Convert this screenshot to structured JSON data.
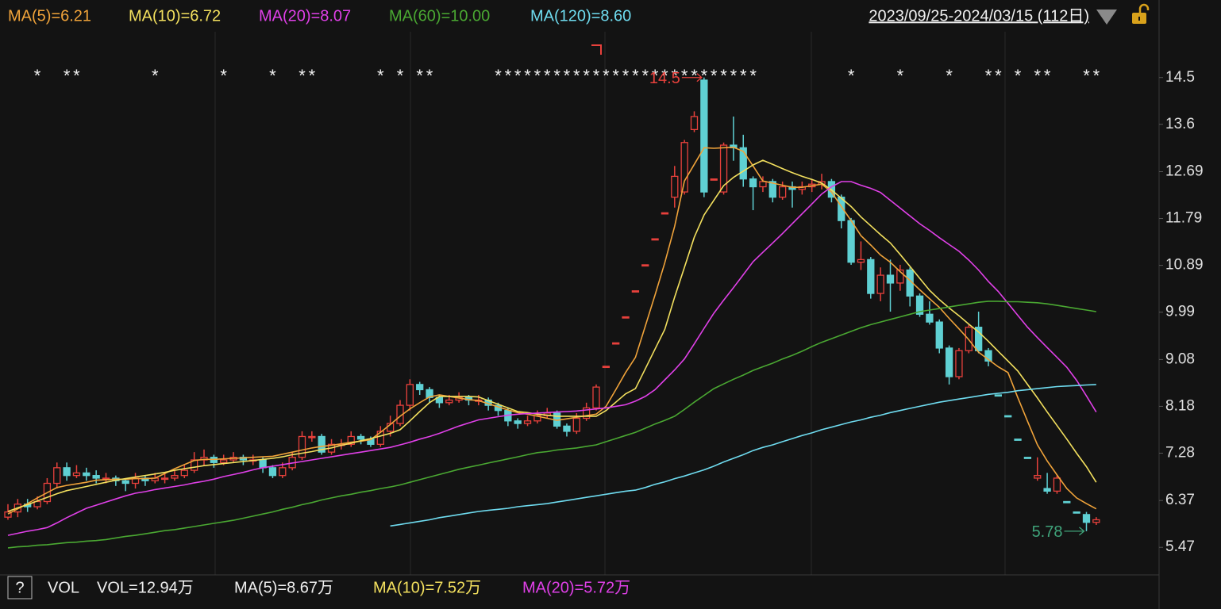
{
  "chart_data": {
    "type": "candlestick",
    "date_range": "2023/09/25-2024/03/15 (112日)",
    "ylim": [
      4.94,
      15.38
    ],
    "yticks": [
      5.47,
      6.37,
      7.28,
      8.18,
      9.08,
      9.99,
      10.89,
      11.79,
      12.69,
      13.6,
      14.5
    ],
    "up_color": "#e8413c",
    "down_color": "#5fd0d3",
    "high_mark": 14.5,
    "low_mark": 5.78,
    "categories": [
      null,
      null,
      null,
      null,
      null,
      null,
      null,
      null,
      null,
      null,
      null,
      null,
      null,
      null,
      null,
      null,
      null,
      null,
      null,
      null,
      null,
      null,
      null,
      null,
      null,
      null,
      null,
      null,
      null,
      null,
      null,
      null,
      null,
      null,
      null,
      null,
      null,
      null,
      null,
      null,
      null,
      null,
      null,
      null,
      null,
      null,
      null,
      null,
      null,
      null,
      null,
      null,
      null,
      null,
      null,
      null,
      null,
      null,
      null,
      null,
      null,
      null,
      null,
      null,
      null,
      null,
      null,
      null,
      null,
      null,
      null,
      null,
      null,
      null,
      null,
      null,
      null,
      null,
      null,
      null,
      null,
      null,
      null,
      null,
      null,
      null,
      null,
      null,
      null,
      null,
      null,
      null,
      null,
      null,
      null,
      null,
      null,
      null,
      null,
      null,
      null,
      null,
      null,
      null,
      null,
      null,
      null,
      null,
      null,
      null,
      null,
      null
    ],
    "event_marks": [
      null,
      null,
      null,
      "*",
      null,
      null,
      "*",
      "*",
      null,
      null,
      null,
      null,
      null,
      null,
      null,
      "*",
      null,
      null,
      null,
      null,
      null,
      null,
      "*",
      null,
      null,
      null,
      null,
      "*",
      null,
      null,
      "*",
      "*",
      null,
      null,
      null,
      null,
      null,
      null,
      "*",
      null,
      "*",
      null,
      "*",
      "*",
      null,
      null,
      null,
      null,
      null,
      null,
      "*",
      "*",
      "*",
      "*",
      "*",
      "*",
      "*",
      "*",
      "*",
      "*",
      "*",
      "*",
      "*",
      "*",
      "*",
      "*",
      "*",
      "*",
      "*",
      "*",
      "*",
      "*",
      "*",
      "*",
      "*",
      "*",
      "*",
      null,
      null,
      null,
      null,
      null,
      null,
      null,
      null,
      null,
      "*",
      null,
      null,
      null,
      null,
      "*",
      null,
      null,
      null,
      null,
      "*",
      null,
      null,
      null,
      "*",
      "*",
      null,
      "*",
      null,
      "*",
      "*",
      null,
      null,
      null,
      "*",
      "*"
    ],
    "open": [
      6.05,
      6.15,
      6.3,
      6.25,
      6.35,
      6.7,
      7.0,
      6.85,
      6.9,
      6.85,
      6.8,
      6.8,
      6.75,
      6.7,
      6.8,
      6.75,
      6.8,
      6.8,
      6.85,
      6.95,
      7.15,
      7.2,
      7.1,
      7.15,
      7.2,
      7.15,
      7.15,
      7.0,
      6.85,
      7.0,
      7.2,
      7.6,
      7.6,
      7.3,
      7.45,
      7.45,
      7.6,
      7.55,
      7.45,
      7.7,
      7.85,
      8.2,
      8.6,
      8.5,
      8.35,
      8.25,
      8.3,
      8.35,
      8.3,
      8.3,
      8.2,
      8.1,
      7.9,
      7.85,
      7.9,
      8.0,
      8.05,
      7.8,
      7.7,
      7.95,
      8.15,
      8.95,
      9.4,
      9.9,
      10.4,
      10.9,
      11.4,
      11.9,
      12.2,
      12.3,
      13.5,
      14.45,
      12.55,
      12.3,
      13.2,
      13.15,
      12.55,
      12.4,
      12.5,
      12.2,
      12.4,
      12.35,
      12.4,
      12.45,
      12.5,
      12.2,
      11.75,
      10.95,
      11.0,
      10.35,
      10.7,
      10.55,
      10.8,
      10.3,
      9.95,
      9.8,
      9.3,
      8.75,
      9.25,
      9.7,
      9.25,
      8.4,
      8.0,
      7.55,
      7.2,
      6.8,
      6.6,
      6.55,
      6.35,
      6.15,
      6.1,
      5.95
    ],
    "high": [
      6.3,
      6.4,
      6.4,
      6.45,
      6.8,
      7.1,
      7.1,
      7.05,
      7.0,
      6.95,
      6.9,
      6.85,
      6.8,
      6.9,
      6.85,
      6.9,
      6.9,
      6.95,
      7.05,
      7.3,
      7.35,
      7.25,
      7.25,
      7.3,
      7.25,
      7.25,
      7.2,
      7.05,
      7.1,
      7.3,
      7.7,
      7.7,
      7.65,
      7.55,
      7.55,
      7.7,
      7.65,
      7.6,
      7.8,
      8.0,
      8.3,
      8.7,
      8.65,
      8.55,
      8.4,
      8.4,
      8.45,
      8.4,
      8.4,
      8.35,
      8.25,
      8.15,
      7.95,
      8.0,
      8.1,
      8.15,
      8.1,
      7.85,
      8.05,
      8.25,
      8.6,
      8.95,
      9.4,
      9.9,
      10.4,
      10.9,
      11.4,
      11.9,
      12.8,
      13.3,
      13.85,
      14.5,
      12.55,
      13.25,
      13.75,
      13.4,
      12.6,
      12.6,
      12.55,
      12.5,
      12.5,
      12.5,
      12.55,
      12.65,
      12.55,
      12.25,
      11.8,
      11.35,
      11.05,
      10.85,
      11.0,
      10.9,
      10.85,
      10.35,
      10.2,
      9.85,
      9.35,
      9.3,
      9.75,
      10.0,
      9.3,
      8.4,
      8.0,
      7.55,
      7.2,
      7.2,
      6.9,
      6.85,
      6.35,
      6.15,
      6.15,
      6.05
    ],
    "low": [
      6.0,
      6.05,
      6.15,
      6.2,
      6.3,
      6.6,
      6.75,
      6.8,
      6.75,
      6.7,
      6.7,
      6.65,
      6.55,
      6.6,
      6.65,
      6.7,
      6.7,
      6.75,
      6.8,
      6.9,
      7.05,
      7.0,
      7.05,
      7.1,
      7.05,
      7.05,
      6.9,
      6.8,
      6.8,
      6.95,
      7.15,
      7.5,
      7.25,
      7.25,
      7.35,
      7.4,
      7.45,
      7.4,
      7.4,
      7.6,
      7.8,
      8.1,
      8.4,
      8.25,
      8.15,
      8.2,
      8.25,
      8.2,
      8.2,
      8.1,
      8.0,
      7.8,
      7.75,
      7.8,
      7.85,
      7.95,
      7.75,
      7.6,
      7.65,
      7.9,
      8.1,
      8.95,
      9.4,
      9.9,
      10.4,
      10.9,
      11.4,
      11.9,
      12.0,
      12.25,
      13.45,
      12.2,
      12.55,
      12.25,
      12.9,
      12.4,
      11.95,
      12.3,
      12.1,
      12.15,
      12.0,
      12.25,
      12.3,
      12.35,
      12.1,
      11.6,
      10.9,
      10.8,
      10.25,
      10.2,
      10.0,
      10.4,
      10.1,
      9.9,
      9.75,
      9.2,
      8.6,
      8.7,
      9.2,
      9.2,
      8.95,
      8.4,
      8.0,
      7.55,
      7.2,
      6.75,
      6.5,
      6.5,
      6.35,
      6.15,
      5.78,
      5.9
    ],
    "close": [
      6.15,
      6.3,
      6.25,
      6.35,
      6.7,
      7.0,
      6.85,
      6.9,
      6.85,
      6.8,
      6.8,
      6.75,
      6.7,
      6.8,
      6.75,
      6.8,
      6.8,
      6.85,
      6.95,
      7.15,
      7.2,
      7.1,
      7.15,
      7.2,
      7.15,
      7.15,
      7.0,
      6.85,
      7.0,
      7.2,
      7.6,
      7.6,
      7.3,
      7.45,
      7.45,
      7.6,
      7.55,
      7.45,
      7.7,
      7.85,
      8.2,
      8.6,
      8.5,
      8.35,
      8.25,
      8.3,
      8.35,
      8.3,
      8.3,
      8.2,
      8.1,
      7.9,
      7.85,
      7.9,
      8.0,
      8.05,
      7.8,
      7.7,
      7.95,
      8.15,
      8.55,
      8.95,
      9.4,
      9.9,
      10.4,
      10.9,
      11.4,
      11.9,
      12.6,
      13.25,
      13.75,
      12.3,
      12.55,
      13.2,
      13.15,
      12.55,
      12.4,
      12.5,
      12.2,
      12.4,
      12.35,
      12.4,
      12.45,
      12.5,
      12.2,
      11.75,
      10.95,
      11.0,
      10.35,
      10.7,
      10.55,
      10.8,
      10.3,
      9.95,
      9.8,
      9.3,
      8.75,
      9.25,
      9.7,
      9.25,
      9.05,
      8.4,
      8.0,
      7.55,
      7.2,
      6.85,
      6.55,
      6.8,
      6.35,
      6.15,
      5.95,
      6.0
    ],
    "series": [
      {
        "name": "MA(5)=6.21",
        "color": "#f0a33a",
        "values": [
          6.11,
          6.21,
          6.31,
          6.42,
          6.52,
          6.62,
          6.66,
          6.69,
          6.72,
          6.76,
          6.77,
          6.78,
          6.78,
          6.79,
          6.79,
          6.8,
          6.89,
          6.98,
          7.06,
          7.14,
          7.16,
          7.16,
          7.17,
          7.18,
          7.19,
          7.2,
          7.21,
          7.22,
          7.26,
          7.3,
          7.34,
          7.38,
          7.41,
          7.43,
          7.46,
          7.49,
          7.51,
          7.54,
          7.68,
          7.83,
          7.99,
          8.13,
          8.25,
          8.36,
          8.4,
          8.37,
          8.34,
          8.31,
          8.29,
          8.23,
          8.17,
          8.11,
          8.06,
          8.03,
          7.99,
          7.95,
          7.91,
          7.94,
          7.97,
          8.0,
          8.03,
          8.18,
          8.5,
          8.83,
          9.12,
          9.72,
          10.32,
          10.94,
          11.64,
          12.51,
          12.83,
          13.15,
          13.14,
          13.15,
          13.16,
          13.08,
          12.8,
          12.51,
          12.47,
          12.43,
          12.39,
          12.39,
          12.42,
          12.45,
          12.3,
          12.02,
          11.75,
          11.46,
          11.28,
          11.09,
          10.95,
          10.77,
          10.6,
          10.42,
          10.25,
          10.08,
          9.87,
          9.67,
          9.46,
          9.22,
          9.08,
          8.94,
          8.83,
          8.35,
          7.89,
          7.44,
          7.13,
          6.86,
          6.6,
          6.42,
          6.31,
          6.21
        ]
      },
      {
        "name": "MA(10)=6.72",
        "color": "#f3e05e",
        "values": [
          6.16,
          6.23,
          6.29,
          6.36,
          6.43,
          6.5,
          6.56,
          6.6,
          6.64,
          6.68,
          6.72,
          6.76,
          6.79,
          6.82,
          6.85,
          6.88,
          6.91,
          6.95,
          6.98,
          7.01,
          7.04,
          7.06,
          7.08,
          7.1,
          7.12,
          7.14,
          7.16,
          7.18,
          7.21,
          7.25,
          7.28,
          7.31,
          7.35,
          7.38,
          7.43,
          7.47,
          7.52,
          7.56,
          7.61,
          7.66,
          7.73,
          7.9,
          8.08,
          8.25,
          8.37,
          8.37,
          8.37,
          8.37,
          8.36,
          8.29,
          8.22,
          8.15,
          8.08,
          8.06,
          8.03,
          8.01,
          7.99,
          7.99,
          7.99,
          7.99,
          7.99,
          8.1,
          8.26,
          8.42,
          8.52,
          8.9,
          9.28,
          9.66,
          10.28,
          10.85,
          11.43,
          11.86,
          12.14,
          12.42,
          12.58,
          12.7,
          12.82,
          12.91,
          12.83,
          12.75,
          12.67,
          12.6,
          12.54,
          12.47,
          12.34,
          12.18,
          12.02,
          11.82,
          11.65,
          11.48,
          11.32,
          11.1,
          10.87,
          10.64,
          10.41,
          10.23,
          10.07,
          9.92,
          9.76,
          9.61,
          9.43,
          9.24,
          9.05,
          8.86,
          8.6,
          8.34,
          8.07,
          7.81,
          7.55,
          7.28,
          7.02,
          6.72
        ]
      },
      {
        "name": "MA(20)=8.07",
        "color": "#e040e8",
        "values": [
          5.7,
          5.74,
          5.78,
          5.81,
          5.85,
          5.94,
          6.04,
          6.13,
          6.22,
          6.28,
          6.34,
          6.4,
          6.46,
          6.51,
          6.54,
          6.58,
          6.61,
          6.64,
          6.67,
          6.71,
          6.74,
          6.78,
          6.83,
          6.87,
          6.91,
          6.96,
          7.0,
          7.03,
          7.06,
          7.09,
          7.12,
          7.15,
          7.18,
          7.21,
          7.24,
          7.27,
          7.3,
          7.33,
          7.36,
          7.39,
          7.44,
          7.49,
          7.55,
          7.6,
          7.66,
          7.73,
          7.8,
          7.86,
          7.92,
          7.95,
          7.98,
          8.01,
          8.03,
          8.04,
          8.05,
          8.06,
          8.07,
          8.08,
          8.09,
          8.11,
          8.13,
          8.15,
          8.18,
          8.21,
          8.28,
          8.37,
          8.5,
          8.69,
          8.88,
          9.09,
          9.38,
          9.68,
          9.97,
          10.22,
          10.46,
          10.71,
          10.96,
          11.14,
          11.32,
          11.5,
          11.69,
          11.88,
          12.07,
          12.26,
          12.4,
          12.5,
          12.5,
          12.43,
          12.37,
          12.29,
          12.14,
          11.99,
          11.84,
          11.69,
          11.56,
          11.42,
          11.29,
          11.16,
          10.99,
          10.8,
          10.58,
          10.39,
          10.16,
          9.93,
          9.7,
          9.5,
          9.31,
          9.12,
          8.93,
          8.68,
          8.38,
          8.07
        ]
      },
      {
        "name": "MA(60)=10.00",
        "color": "#4aa832",
        "values": [
          5.46,
          5.48,
          5.49,
          5.51,
          5.52,
          5.54,
          5.56,
          5.57,
          5.59,
          5.6,
          5.62,
          5.65,
          5.68,
          5.7,
          5.73,
          5.76,
          5.79,
          5.81,
          5.84,
          5.87,
          5.9,
          5.93,
          5.96,
          5.99,
          6.03,
          6.07,
          6.11,
          6.15,
          6.2,
          6.24,
          6.29,
          6.33,
          6.38,
          6.42,
          6.46,
          6.49,
          6.53,
          6.56,
          6.6,
          6.63,
          6.67,
          6.72,
          6.77,
          6.82,
          6.87,
          6.92,
          6.97,
          7.01,
          7.05,
          7.09,
          7.13,
          7.17,
          7.21,
          7.25,
          7.29,
          7.31,
          7.34,
          7.36,
          7.38,
          7.41,
          7.44,
          7.5,
          7.56,
          7.62,
          7.68,
          7.76,
          7.84,
          7.91,
          7.99,
          8.12,
          8.26,
          8.39,
          8.52,
          8.61,
          8.7,
          8.78,
          8.87,
          8.94,
          9.01,
          9.09,
          9.16,
          9.24,
          9.33,
          9.41,
          9.48,
          9.55,
          9.62,
          9.69,
          9.75,
          9.8,
          9.85,
          9.9,
          9.95,
          10.0,
          10.03,
          10.06,
          10.09,
          10.12,
          10.15,
          10.18,
          10.2,
          10.2,
          10.19,
          10.19,
          10.18,
          10.17,
          10.15,
          10.12,
          10.09,
          10.06,
          10.03,
          10.0
        ]
      },
      {
        "name": "MA(120)=8.60",
        "color": "#6fdcf0",
        "values": [
          null,
          null,
          null,
          null,
          null,
          null,
          null,
          null,
          null,
          null,
          null,
          null,
          null,
          null,
          null,
          null,
          null,
          null,
          null,
          null,
          null,
          null,
          null,
          null,
          null,
          null,
          null,
          null,
          null,
          null,
          null,
          null,
          null,
          null,
          null,
          null,
          null,
          null,
          null,
          5.88,
          5.91,
          5.94,
          5.97,
          6.0,
          6.04,
          6.07,
          6.1,
          6.13,
          6.16,
          6.18,
          6.2,
          6.22,
          6.25,
          6.27,
          6.29,
          6.31,
          6.34,
          6.37,
          6.4,
          6.43,
          6.46,
          6.49,
          6.52,
          6.55,
          6.57,
          6.62,
          6.68,
          6.73,
          6.79,
          6.84,
          6.9,
          6.96,
          7.03,
          7.11,
          7.18,
          7.25,
          7.33,
          7.39,
          7.44,
          7.5,
          7.56,
          7.62,
          7.67,
          7.73,
          7.78,
          7.83,
          7.88,
          7.92,
          7.97,
          8.01,
          8.06,
          8.1,
          8.14,
          8.18,
          8.22,
          8.26,
          8.29,
          8.32,
          8.35,
          8.38,
          8.41,
          8.43,
          8.45,
          8.48,
          8.5,
          8.52,
          8.54,
          8.56,
          8.57,
          8.58,
          8.59,
          8.6
        ]
      }
    ],
    "volume_legend": {
      "help": "?",
      "label": "VOL",
      "items": [
        {
          "text": "VOL=12.94万",
          "color": "#f0f0f0"
        },
        {
          "text": "MA(5)=8.67万",
          "color": "#f0f0f0"
        },
        {
          "text": "MA(10)=7.52万",
          "color": "#f3e05e"
        },
        {
          "text": "MA(20)=5.72万",
          "color": "#e040e8"
        }
      ]
    }
  }
}
